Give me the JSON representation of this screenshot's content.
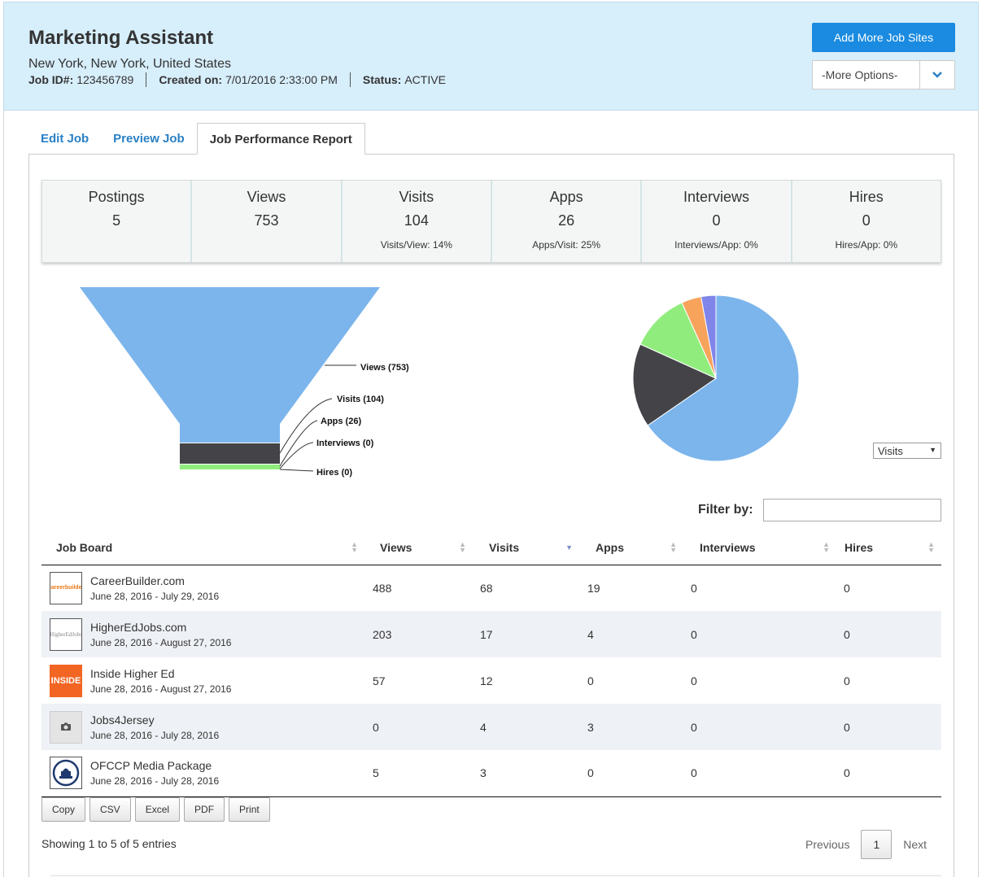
{
  "header": {
    "title": "Marketing Assistant",
    "location": "New York, New York, United States",
    "job_id_label": "Job ID#:",
    "job_id": "123456789",
    "created_label": "Created on:",
    "created": "7/01/2016 2:33:00 PM",
    "status_label": "Status:",
    "status": "ACTIVE",
    "add_button": "Add More Job Sites",
    "more_options": "-More Options-"
  },
  "tabs": [
    {
      "label": "Edit Job"
    },
    {
      "label": "Preview Job"
    },
    {
      "label": "Job Performance Report",
      "active": true
    }
  ],
  "stats": [
    {
      "label": "Postings",
      "value": "5",
      "ratio": ""
    },
    {
      "label": "Views",
      "value": "753",
      "ratio": ""
    },
    {
      "label": "Visits",
      "value": "104",
      "ratio": "Visits/View: 14%"
    },
    {
      "label": "Apps",
      "value": "26",
      "ratio": "Apps/Visit: 25%"
    },
    {
      "label": "Interviews",
      "value": "0",
      "ratio": "Interviews/App: 0%"
    },
    {
      "label": "Hires",
      "value": "0",
      "ratio": "Hires/App: 0%"
    }
  ],
  "funnel": {
    "stages": [
      {
        "label": "Views (753)",
        "value": 753,
        "color": "#7cb5ec"
      },
      {
        "label": "Visits (104)",
        "value": 104,
        "color": "#434348"
      },
      {
        "label": "Apps (26)",
        "value": 26,
        "color": "#90ed7d"
      },
      {
        "label": "Interviews (0)",
        "value": 0,
        "color": "#f7a35c"
      },
      {
        "label": "Hires (0)",
        "value": 0,
        "color": "#8085e9"
      }
    ]
  },
  "pie": {
    "select_value": "Visits",
    "slices": [
      {
        "name": "CareerBuilder.com",
        "value": 68,
        "color": "#7cb5ec"
      },
      {
        "name": "HigherEdJobs.com",
        "value": 17,
        "color": "#434348"
      },
      {
        "name": "Inside Higher Ed",
        "value": 12,
        "color": "#90ed7d"
      },
      {
        "name": "Jobs4Jersey",
        "value": 4,
        "color": "#f7a35c"
      },
      {
        "name": "OFCCP Media Package",
        "value": 3,
        "color": "#8085e9"
      }
    ]
  },
  "filter": {
    "label": "Filter by:",
    "value": ""
  },
  "table": {
    "columns": [
      "Job Board",
      "Views",
      "Visits",
      "Apps",
      "Interviews",
      "Hires"
    ],
    "rows": [
      {
        "name": "CareerBuilder.com",
        "dates": "June 28, 2016 - July 29, 2016",
        "logo": "careerbuilder",
        "views": "488",
        "visits": "68",
        "apps": "19",
        "interviews": "0",
        "hires": "0"
      },
      {
        "name": "HigherEdJobs.com",
        "dates": "June 28, 2016 - August 27, 2016",
        "logo": "HigherEdJobs",
        "views": "203",
        "visits": "17",
        "apps": "4",
        "interviews": "0",
        "hires": "0"
      },
      {
        "name": "Inside Higher Ed",
        "dates": "June 28, 2016 - August 27, 2016",
        "logo": "INSIDE",
        "views": "57",
        "visits": "12",
        "apps": "0",
        "interviews": "0",
        "hires": "0"
      },
      {
        "name": "Jobs4Jersey",
        "dates": "June 28, 2016 - July 28, 2016",
        "logo": "camera",
        "views": "0",
        "visits": "4",
        "apps": "3",
        "interviews": "0",
        "hires": "0"
      },
      {
        "name": "OFCCP Media Package",
        "dates": "June 28, 2016 - July 28, 2016",
        "logo": "seal",
        "views": "5",
        "visits": "3",
        "apps": "0",
        "interviews": "0",
        "hires": "0"
      }
    ]
  },
  "export_buttons": [
    "Copy",
    "CSV",
    "Excel",
    "PDF",
    "Print"
  ],
  "footer": {
    "showing": "Showing 1 to 5 of 5 entries",
    "previous": "Previous",
    "page": "1",
    "next": "Next"
  }
}
